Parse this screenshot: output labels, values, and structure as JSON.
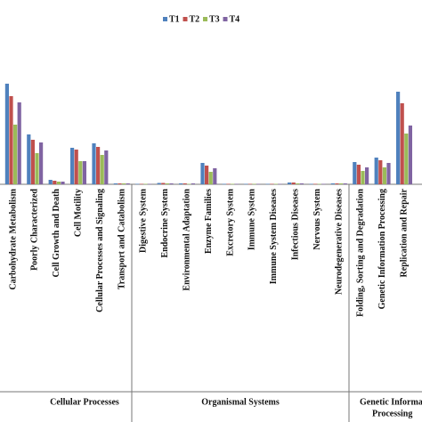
{
  "chart_data": {
    "type": "bar",
    "categories": [
      "Carbohydrate Metabolism",
      "Poorly Characterized",
      "Cell Growth and Death",
      "Cell Motility",
      "Cellular Processes and Signaling",
      "Transport and Catabolism",
      "Digestive System",
      "Endocrine System",
      "Environmental Adaptation",
      "Enzyme Families",
      "Excretory System",
      "Immune System",
      "Immune System Diseases",
      "Infectious Diseases",
      "Nervous System",
      "Neurodegenerative Diseases",
      "Folding, Sorting and Degradation",
      "Genetic Information Processing",
      "Replication and Repair"
    ],
    "series": [
      {
        "name": "T1",
        "color": "#4f81bd",
        "values": [
          113,
          56,
          5,
          41,
          46,
          1,
          0.5,
          1.5,
          1,
          24,
          0.5,
          0.5,
          0.5,
          2,
          0.5,
          1,
          25,
          30,
          104
        ]
      },
      {
        "name": "T2",
        "color": "#c0504d",
        "values": [
          99,
          50,
          4,
          39,
          42,
          1,
          0.5,
          1.5,
          1,
          21,
          0.5,
          0.5,
          0.5,
          2,
          0.5,
          1,
          22,
          27,
          91
        ]
      },
      {
        "name": "T3",
        "color": "#9bbb59",
        "values": [
          67,
          35,
          3,
          26,
          33,
          1,
          0.5,
          1,
          0.5,
          14,
          0.5,
          0.5,
          0.5,
          1,
          0.5,
          1,
          15,
          19,
          57
        ]
      },
      {
        "name": "T4",
        "color": "#8064a2",
        "values": [
          92,
          47,
          3,
          26,
          38,
          1,
          0.5,
          1,
          1,
          18,
          0.5,
          0.5,
          0.5,
          1,
          0.5,
          1,
          19,
          24,
          66
        ]
      }
    ],
    "ylim": [
      0,
      120
    ],
    "groups": [
      {
        "label": [
          "Cellular Processes"
        ]
      },
      {
        "label": [
          "Organismal Systems"
        ]
      },
      {
        "label": [
          "Genetic Information",
          "Processing"
        ]
      }
    ]
  }
}
